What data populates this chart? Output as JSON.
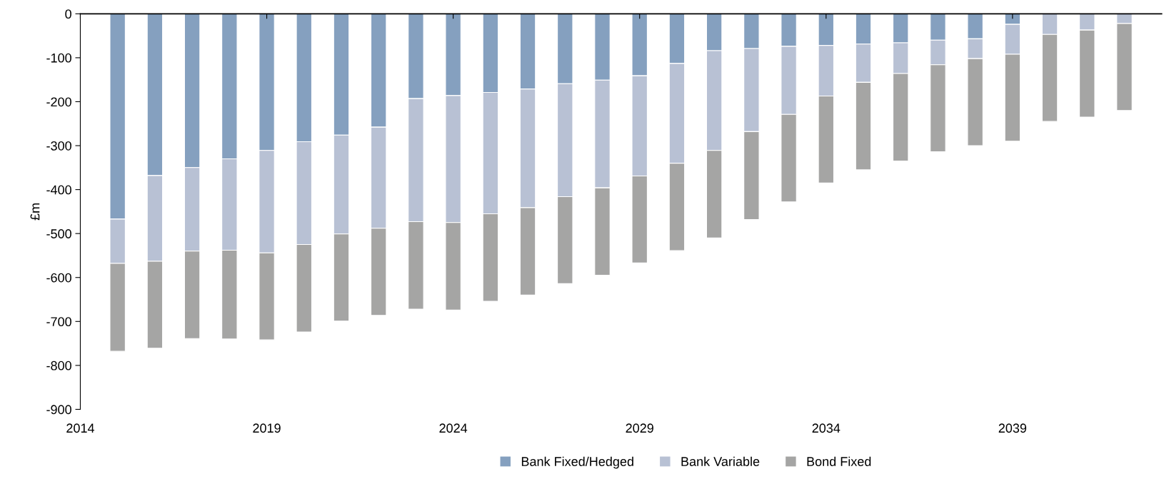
{
  "chart_data": {
    "type": "bar",
    "stacked": true,
    "ylabel": "£m",
    "x": [
      2015,
      2016,
      2017,
      2018,
      2019,
      2020,
      2021,
      2022,
      2023,
      2024,
      2025,
      2026,
      2027,
      2028,
      2029,
      2030,
      2031,
      2032,
      2033,
      2034,
      2035,
      2036,
      2037,
      2038,
      2039,
      2040,
      2041,
      2042
    ],
    "series": [
      {
        "name": "Bank Fixed/Hedged",
        "color": "#85a0bf",
        "values": [
          -467,
          -368,
          -350,
          -330,
          -311,
          -291,
          -276,
          -258,
          -193,
          -186,
          -179,
          -171,
          -159,
          -151,
          -141,
          -113,
          -84,
          -79,
          -74,
          -72,
          -69,
          -66,
          -60,
          -57,
          -24,
          null,
          null,
          null
        ]
      },
      {
        "name": "Bank Variable",
        "color": "#b8c1d4",
        "values": [
          -101,
          -195,
          -190,
          -208,
          -233,
          -234,
          -225,
          -230,
          -280,
          -289,
          -276,
          -270,
          -257,
          -245,
          -228,
          -227,
          -227,
          -189,
          -155,
          -115,
          -87,
          -70,
          -56,
          -45,
          -68,
          -47,
          -37,
          -22
        ]
      },
      {
        "name": "Bond Fixed",
        "color": "#a5a5a4",
        "values": [
          -200,
          -198,
          -199,
          -202,
          -198,
          -199,
          -198,
          -198,
          -199,
          -199,
          -199,
          -199,
          -198,
          -199,
          -198,
          -199,
          -199,
          -200,
          -199,
          -198,
          -199,
          -199,
          -198,
          -198,
          -198,
          -198,
          -198,
          -198
        ]
      }
    ],
    "xlim": [
      2014,
      2043
    ],
    "xticks": [
      2014,
      2019,
      2024,
      2029,
      2034,
      2039
    ],
    "ylim": [
      -900,
      0
    ],
    "yticks": [
      -900,
      -800,
      -700,
      -600,
      -500,
      -400,
      -300,
      -200,
      -100,
      0
    ],
    "grid": false,
    "legend": "bottom"
  }
}
